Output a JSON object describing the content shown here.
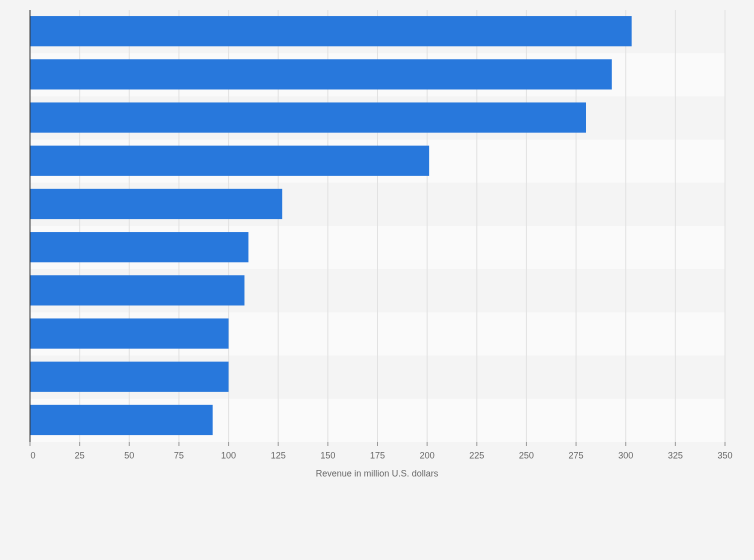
{
  "chart_data": {
    "type": "bar",
    "orientation": "horizontal",
    "x_label": "Revenue in million U.S. dollars",
    "categories": [
      null,
      null,
      null,
      null,
      null,
      null,
      null,
      null,
      null,
      null
    ],
    "values": [
      303,
      293,
      280,
      201,
      127,
      110,
      108,
      100,
      100,
      92
    ],
    "color": "#2878dc",
    "xlim": [
      0,
      350
    ],
    "xticks": [
      0,
      25,
      50,
      75,
      100,
      125,
      150,
      175,
      200,
      225,
      250,
      275,
      300,
      325,
      350
    ],
    "grid": true
  }
}
